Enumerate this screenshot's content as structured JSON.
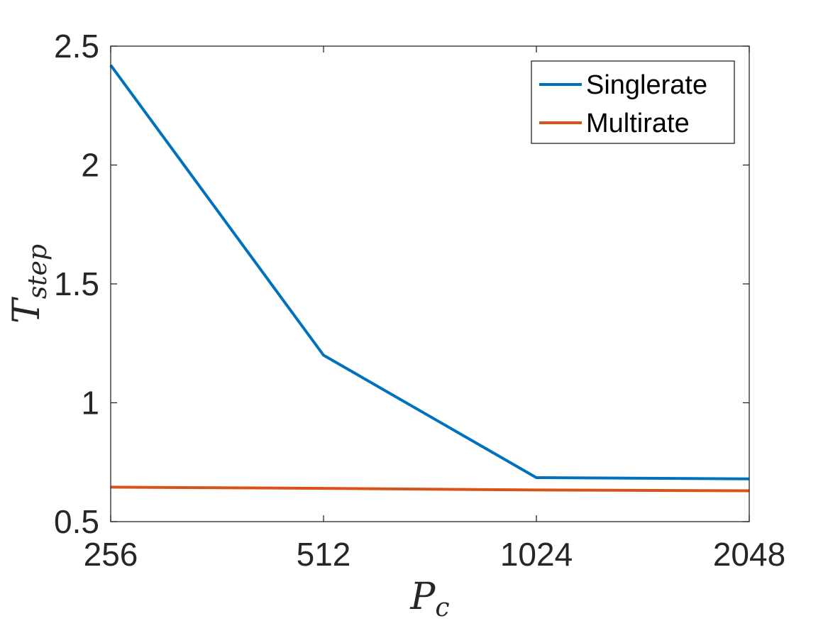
{
  "chart_data": {
    "type": "line",
    "categories": [
      "256",
      "512",
      "1024",
      "2048"
    ],
    "x": [
      256,
      512,
      1024,
      2048
    ],
    "xscale": "log2",
    "xlim": [
      256,
      2048
    ],
    "ylim": [
      0.5,
      2.5
    ],
    "yticks": [
      "0.5",
      "1",
      "1.5",
      "2",
      "2.5"
    ],
    "ytick_values": [
      0.5,
      1,
      1.5,
      2,
      2.5
    ],
    "xlabel": {
      "main": "P",
      "sub": "c"
    },
    "ylabel": {
      "main": "T",
      "sub": "step"
    },
    "grid": false,
    "legend_position": "top-right",
    "series": [
      {
        "name": "Singlerate",
        "color": "#0072BD",
        "values": [
          2.42,
          1.2,
          0.685,
          0.68
        ]
      },
      {
        "name": "Multirate",
        "color": "#D95319",
        "values": [
          0.645,
          0.64,
          0.633,
          0.63
        ]
      }
    ]
  }
}
